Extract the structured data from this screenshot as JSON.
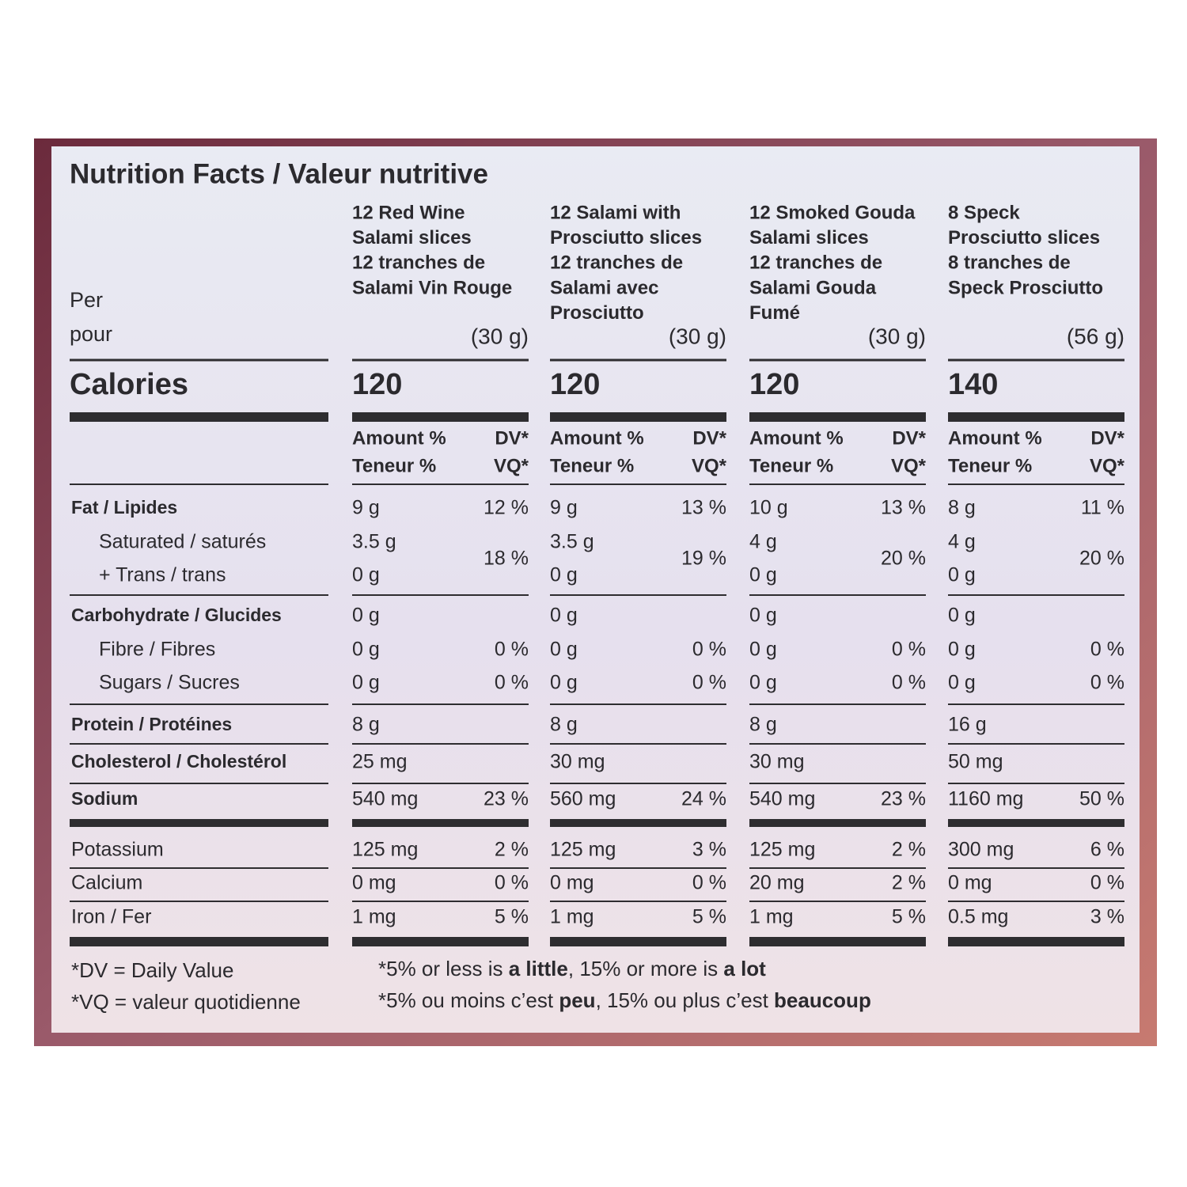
{
  "title": "Nutrition Facts / Valeur nutritive",
  "per": [
    "Per",
    "pour"
  ],
  "calories_label": "Calories",
  "amount_header": [
    "Amount %",
    "DV*",
    "Teneur %",
    "VQ*"
  ],
  "nutrients": [
    "Fat / Lipides",
    "Saturated / saturés",
    "+ Trans / trans",
    "Carbohydrate / Glucides",
    "Fibre / Fibres",
    "Sugars / Sucres",
    "Protein / Protéines",
    "Cholesterol / Cholestérol",
    "Sodium",
    "Potassium",
    "Calcium",
    "Iron / Fer"
  ],
  "products": [
    {
      "name": [
        "12 Red Wine",
        "Salami slices",
        "12 tranches de",
        "Salami Vin Rouge"
      ],
      "serving": "(30 g)",
      "calories": "120",
      "rows": [
        [
          "9 g",
          "12 %"
        ],
        [
          "3.5 g",
          "18 %"
        ],
        [
          "0 g"
        ],
        [
          "0 g"
        ],
        [
          "0 g",
          "0 %"
        ],
        [
          "0 g",
          "0 %"
        ],
        [
          "8 g"
        ],
        [
          "25 mg"
        ],
        [
          "540 mg",
          "23 %"
        ],
        [
          "125 mg",
          "2 %"
        ],
        [
          "0 mg",
          "0 %"
        ],
        [
          "1 mg",
          "5 %"
        ]
      ]
    },
    {
      "name": [
        "12 Salami with",
        "Prosciutto slices",
        "12 tranches de",
        "Salami avec",
        "Prosciutto"
      ],
      "serving": "(30 g)",
      "calories": "120",
      "rows": [
        [
          "9 g",
          "13 %"
        ],
        [
          "3.5 g",
          "19 %"
        ],
        [
          "0 g"
        ],
        [
          "0 g"
        ],
        [
          "0 g",
          "0 %"
        ],
        [
          "0 g",
          "0 %"
        ],
        [
          "8 g"
        ],
        [
          "30 mg"
        ],
        [
          "560 mg",
          "24 %"
        ],
        [
          "125 mg",
          "3 %"
        ],
        [
          "0 mg",
          "0 %"
        ],
        [
          "1 mg",
          "5 %"
        ]
      ]
    },
    {
      "name": [
        "12 Smoked Gouda",
        "Salami slices",
        "12 tranches de",
        "Salami Gouda",
        "Fumé"
      ],
      "serving": "(30 g)",
      "calories": "120",
      "rows": [
        [
          "10 g",
          "13 %"
        ],
        [
          "4 g",
          "20 %"
        ],
        [
          "0 g"
        ],
        [
          "0 g"
        ],
        [
          "0 g",
          "0 %"
        ],
        [
          "0 g",
          "0 %"
        ],
        [
          "8 g"
        ],
        [
          "30 mg"
        ],
        [
          "540 mg",
          "23 %"
        ],
        [
          "125 mg",
          "2 %"
        ],
        [
          "20 mg",
          "2 %"
        ],
        [
          "1 mg",
          "5 %"
        ]
      ]
    },
    {
      "name": [
        "8 Speck",
        "Prosciutto slices",
        "8 tranches de",
        "Speck Prosciutto"
      ],
      "serving": "(56 g)",
      "calories": "140",
      "rows": [
        [
          "8 g",
          "11 %"
        ],
        [
          "4 g",
          "20 %"
        ],
        [
          "0 g"
        ],
        [
          "0 g"
        ],
        [
          "0 g",
          "0 %"
        ],
        [
          "0 g",
          "0 %"
        ],
        [
          "16 g"
        ],
        [
          "50 mg"
        ],
        [
          "1160 mg",
          "50 %"
        ],
        [
          "300 mg",
          "6 %"
        ],
        [
          "0 mg",
          "0 %"
        ],
        [
          "0.5 mg",
          "3 %"
        ]
      ]
    }
  ],
  "footnotes_left": [
    "*DV = Daily Value",
    "*VQ = valeur quotidienne"
  ],
  "footnotes_right": [
    [
      "*5% or less is ",
      "a little",
      ", 15% or more is ",
      "a lot"
    ],
    [
      "*5% ou moins c’est ",
      "peu",
      ", 15% ou plus c’est ",
      "beaucoup"
    ]
  ]
}
